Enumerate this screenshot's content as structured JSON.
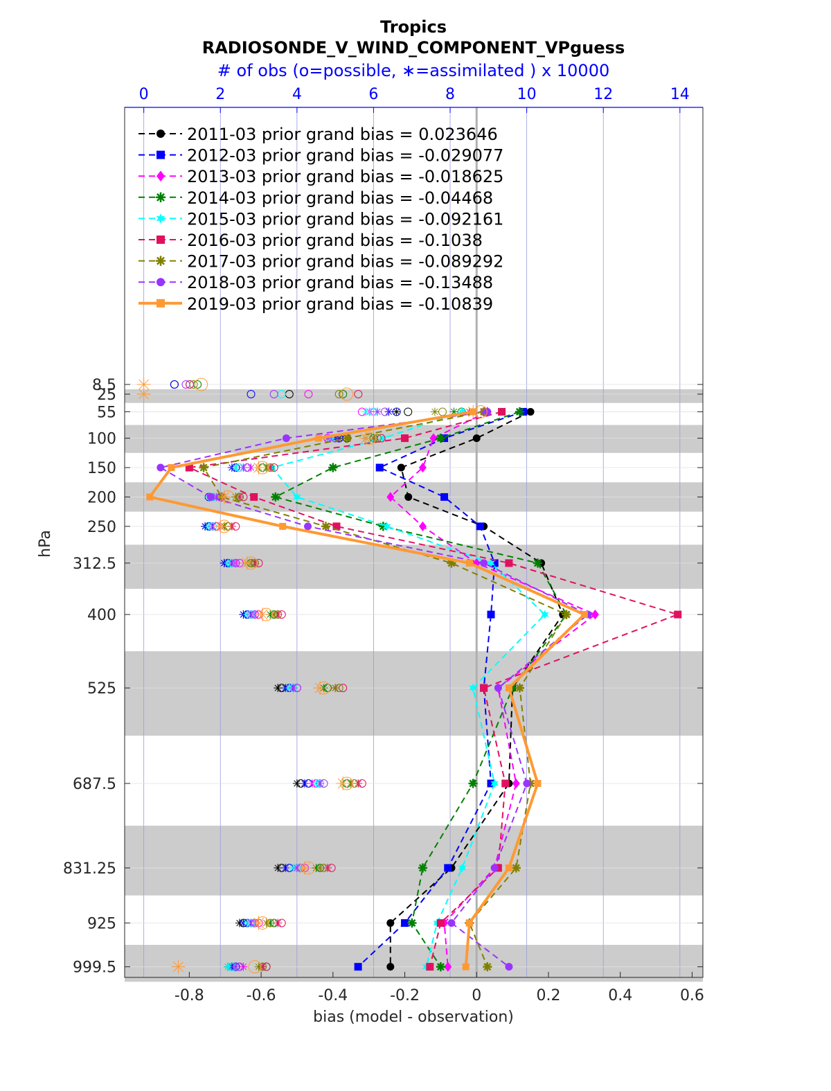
{
  "chart_data": {
    "type": "line",
    "title": "Tropics",
    "subtitle": "RADIOSONDE_V_WIND_COMPONENT_VPguess",
    "top_axis_label": "# of obs (o=possible, ∗=assimilated ) x 10000",
    "xlabel": "bias (model - observation)",
    "ylabel": "hPa",
    "xlim": [
      -0.98,
      0.63
    ],
    "x_ticks": [
      -0.8,
      -0.6,
      -0.4,
      -0.2,
      0,
      0.2,
      0.4,
      0.6
    ],
    "x_tick_labels": [
      "-0.8",
      "-0.6",
      "-0.4",
      "-0.2",
      "0",
      "0.2",
      "0.4",
      "0.6"
    ],
    "top_xlim": [
      -0.5,
      14.6
    ],
    "top_ticks": [
      0,
      2,
      4,
      6,
      8,
      10,
      12,
      14
    ],
    "top_tick_labels": [
      "0",
      "2",
      "4",
      "6",
      "8",
      "10",
      "12",
      "14"
    ],
    "y_reversed": true,
    "levels": [
      8.5,
      25,
      55,
      100,
      150,
      200,
      250,
      312.5,
      400,
      525,
      687.5,
      831.25,
      925,
      999.5
    ],
    "level_labels": [
      "8.5",
      "25",
      "55",
      "100",
      "150",
      "200",
      "250",
      "312.5",
      "400",
      "525",
      "687.5",
      "831.25",
      "925",
      "999.5"
    ],
    "grid": true,
    "legend_position": "top-left",
    "series": [
      {
        "name": "2011-03 prior grand bias = 0.023646",
        "color": "#000000",
        "marker": "circle",
        "dash": true,
        "values": [
          null,
          null,
          0.15,
          0.0,
          -0.21,
          -0.19,
          0.02,
          0.18,
          0.24,
          0.1,
          0.09,
          -0.07,
          -0.24,
          -0.24
        ],
        "obs_possible": [
          0.8,
          3.8,
          6.9,
          5.3,
          2.4,
          1.8,
          1.7,
          2.2,
          2.7,
          3.6,
          4.1,
          3.6,
          2.6,
          2.3
        ],
        "obs_assim": [
          null,
          null,
          6.6,
          5.1,
          2.4,
          1.7,
          1.6,
          2.1,
          2.6,
          3.5,
          4.0,
          3.5,
          2.5,
          2.2
        ]
      },
      {
        "name": "2012-03 prior grand bias = -0.029077",
        "color": "#0000ff",
        "marker": "square",
        "dash": true,
        "values": [
          null,
          null,
          0.13,
          -0.09,
          -0.27,
          -0.09,
          0.01,
          0.05,
          0.04,
          0.02,
          0.04,
          -0.08,
          -0.2,
          -0.33
        ],
        "obs_possible": [
          0.8,
          2.8,
          6.6,
          5.1,
          2.4,
          1.7,
          1.7,
          2.2,
          2.7,
          3.8,
          4.3,
          3.8,
          2.7,
          2.4
        ],
        "obs_assim": [
          null,
          null,
          6.4,
          5.0,
          2.3,
          1.7,
          1.6,
          2.1,
          2.6,
          3.7,
          4.2,
          3.7,
          2.6,
          2.3
        ]
      },
      {
        "name": "2013-03 prior grand bias = -0.018625",
        "color": "#ff00ff",
        "marker": "diamond",
        "dash": true,
        "values": [
          null,
          null,
          0.03,
          -0.12,
          -0.15,
          -0.24,
          -0.15,
          0.0,
          0.33,
          0.06,
          0.11,
          0.05,
          -0.09,
          -0.08
        ],
        "obs_possible": [
          1.2,
          4.3,
          5.7,
          4.8,
          2.7,
          2.0,
          1.9,
          2.5,
          3.0,
          4.0,
          4.5,
          4.2,
          3.0,
          2.5
        ],
        "obs_assim": [
          null,
          null,
          5.9,
          4.9,
          2.8,
          2.1,
          2.0,
          2.4,
          2.9,
          3.9,
          4.4,
          4.0,
          2.9,
          2.6
        ]
      },
      {
        "name": "2014-03 prior grand bias = -0.04468",
        "color": "#008000",
        "marker": "star",
        "dash": true,
        "values": [
          null,
          null,
          0.12,
          -0.1,
          -0.4,
          -0.56,
          -0.26,
          0.17,
          0.25,
          0.1,
          -0.01,
          -0.15,
          -0.18,
          -0.1
        ],
        "obs_possible": [
          1.4,
          5.2,
          8.3,
          6.0,
          3.1,
          2.5,
          2.2,
          2.8,
          3.4,
          4.8,
          5.3,
          4.6,
          3.4,
          3.2
        ],
        "obs_assim": [
          null,
          null,
          8.1,
          5.8,
          3.0,
          2.4,
          2.1,
          2.7,
          3.3,
          4.7,
          5.2,
          4.5,
          3.3,
          3.1
        ]
      },
      {
        "name": "2015-03 prior grand bias = -0.092161",
        "color": "#00ffff",
        "marker": "hexagram",
        "dash": true,
        "values": [
          null,
          null,
          -0.04,
          -0.26,
          -0.57,
          -0.5,
          -0.25,
          0.04,
          0.19,
          -0.01,
          0.05,
          -0.04,
          -0.11,
          -0.14
        ],
        "obs_possible": [
          1.2,
          3.6,
          6.0,
          5.0,
          2.5,
          1.8,
          1.8,
          2.3,
          2.8,
          3.9,
          4.6,
          4.0,
          2.8,
          2.3
        ],
        "obs_assim": [
          null,
          null,
          5.8,
          4.9,
          2.4,
          1.7,
          1.7,
          2.2,
          2.7,
          3.8,
          4.5,
          3.9,
          2.7,
          2.2
        ]
      },
      {
        "name": "2016-03 prior grand bias = -0.1038",
        "color": "#e0115f",
        "marker": "square",
        "dash": true,
        "values": [
          null,
          null,
          0.07,
          -0.2,
          -0.8,
          -0.62,
          -0.39,
          0.09,
          0.56,
          0.02,
          0.08,
          0.06,
          -0.1,
          -0.13
        ],
        "obs_possible": [
          1.2,
          5.6,
          8.9,
          6.2,
          3.4,
          2.6,
          2.4,
          3.0,
          3.6,
          5.2,
          5.7,
          4.9,
          3.6,
          3.2
        ],
        "obs_assim": [
          null,
          null,
          8.5,
          6.0,
          3.3,
          2.5,
          2.3,
          2.9,
          3.5,
          5.0,
          5.6,
          4.8,
          3.5,
          3.1
        ]
      },
      {
        "name": "2017-03 prior grand bias = -0.089292",
        "color": "#808000",
        "marker": "star",
        "dash": true,
        "values": [
          null,
          null,
          0.02,
          -0.36,
          -0.76,
          -0.71,
          -0.42,
          -0.07,
          0.25,
          0.12,
          0.15,
          0.11,
          -0.02,
          0.03
        ],
        "obs_possible": [
          1.3,
          5.1,
          7.8,
          6.1,
          3.3,
          2.5,
          2.2,
          2.9,
          3.5,
          5.1,
          5.5,
          4.7,
          3.3,
          3.1
        ],
        "obs_assim": [
          null,
          null,
          7.6,
          6.0,
          3.2,
          2.4,
          2.1,
          2.8,
          3.4,
          5.0,
          5.4,
          4.6,
          3.2,
          3.0
        ]
      },
      {
        "name": "2018-03 prior grand bias = -0.13488",
        "color": "#9933ff",
        "marker": "circle",
        "dash": true,
        "values": [
          null,
          null,
          0.03,
          -0.53,
          -0.88,
          -0.74,
          -0.47,
          0.02,
          0.31,
          0.06,
          0.14,
          0.05,
          -0.07,
          0.09
        ],
        "obs_possible": [
          1.1,
          3.4,
          6.3,
          5.0,
          2.7,
          2.0,
          1.9,
          2.4,
          2.9,
          4.0,
          4.7,
          4.1,
          2.9,
          2.5
        ],
        "obs_assim": [
          null,
          null,
          6.1,
          4.8,
          2.6,
          1.9,
          1.8,
          2.3,
          2.8,
          3.9,
          4.6,
          4.0,
          2.8,
          2.4
        ]
      },
      {
        "name": "2019-03 prior grand bias = -0.10839",
        "color": "#ff9933",
        "marker": "square",
        "dash": false,
        "values": [
          null,
          null,
          -0.01,
          -0.44,
          -0.85,
          -0.91,
          -0.54,
          -0.02,
          0.3,
          0.09,
          0.17,
          0.09,
          -0.02,
          -0.03
        ],
        "obs_possible": [
          1.5,
          5.3,
          8.8,
          5.9,
          3.1,
          2.2,
          2.1,
          2.8,
          3.2,
          4.7,
          5.3,
          4.3,
          3.1,
          2.9
        ],
        "obs_assim": [
          0.0,
          0.0,
          8.6,
          5.8,
          3.0,
          2.1,
          2.0,
          2.7,
          3.1,
          4.6,
          5.2,
          4.2,
          3.0,
          0.9
        ]
      }
    ]
  }
}
